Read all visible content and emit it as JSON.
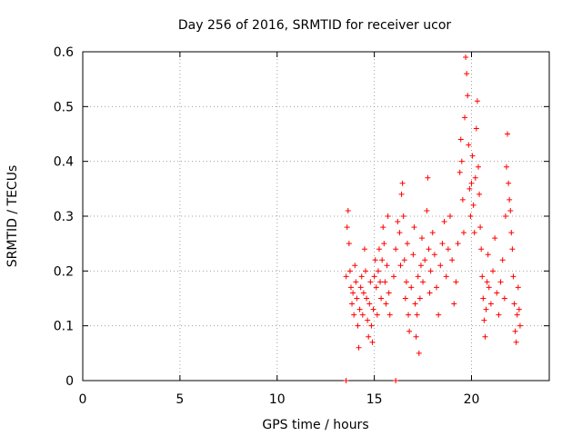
{
  "chart_data": {
    "type": "scatter",
    "title": "Day 256 of 2016, SRMTID for receiver ucor",
    "xlabel": "GPS time / hours",
    "ylabel": "SRMTID / TECUs",
    "xlim": [
      0,
      24
    ],
    "ylim": [
      0,
      0.6
    ],
    "xticks": [
      0,
      5,
      10,
      15,
      20
    ],
    "xtick_labels": [
      "0",
      "5",
      "10",
      "15",
      "20"
    ],
    "yticks": [
      0,
      0.1,
      0.2,
      0.3,
      0.4,
      0.5,
      0.6
    ],
    "ytick_labels": [
      "0",
      "0.1",
      "0.2",
      "0.3",
      "0.4",
      "0.5",
      "0.6"
    ],
    "grid": true,
    "marker": "+",
    "color": "#ff0000",
    "series": [
      {
        "name": "SRMTID",
        "points": [
          [
            13.55,
            0.19
          ],
          [
            13.6,
            0.28
          ],
          [
            13.65,
            0.31
          ],
          [
            13.7,
            0.25
          ],
          [
            13.75,
            0.2
          ],
          [
            13.8,
            0.17
          ],
          [
            13.85,
            0.14
          ],
          [
            13.9,
            0.16
          ],
          [
            13.95,
            0.12
          ],
          [
            14.0,
            0.21
          ],
          [
            14.05,
            0.18
          ],
          [
            14.1,
            0.15
          ],
          [
            14.15,
            0.1
          ],
          [
            14.2,
            0.06
          ],
          [
            14.25,
            0.13
          ],
          [
            14.3,
            0.17
          ],
          [
            14.35,
            0.19
          ],
          [
            14.4,
            0.12
          ],
          [
            14.45,
            0.16
          ],
          [
            14.5,
            0.24
          ],
          [
            14.55,
            0.2
          ],
          [
            14.6,
            0.15
          ],
          [
            14.65,
            0.11
          ],
          [
            14.7,
            0.08
          ],
          [
            14.75,
            0.14
          ],
          [
            14.8,
            0.18
          ],
          [
            14.85,
            0.1
          ],
          [
            14.9,
            0.07
          ],
          [
            14.95,
            0.13
          ],
          [
            15.0,
            0.19
          ],
          [
            15.05,
            0.22
          ],
          [
            15.1,
            0.17
          ],
          [
            15.15,
            0.12
          ],
          [
            15.2,
            0.2
          ],
          [
            15.25,
            0.24
          ],
          [
            15.3,
            0.18
          ],
          [
            15.35,
            0.15
          ],
          [
            15.4,
            0.22
          ],
          [
            15.45,
            0.28
          ],
          [
            15.5,
            0.25
          ],
          [
            15.55,
            0.18
          ],
          [
            15.6,
            0.14
          ],
          [
            15.65,
            0.21
          ],
          [
            15.7,
            0.3
          ],
          [
            15.75,
            0.16
          ],
          [
            15.8,
            0.12
          ],
          [
            16.0,
            0.19
          ],
          [
            16.1,
            0.24
          ],
          [
            16.2,
            0.29
          ],
          [
            16.3,
            0.27
          ],
          [
            16.35,
            0.21
          ],
          [
            16.4,
            0.34
          ],
          [
            16.45,
            0.36
          ],
          [
            16.5,
            0.3
          ],
          [
            16.55,
            0.22
          ],
          [
            16.6,
            0.15
          ],
          [
            16.65,
            0.18
          ],
          [
            16.7,
            0.25
          ],
          [
            16.75,
            0.12
          ],
          [
            16.8,
            0.09
          ],
          [
            16.9,
            0.17
          ],
          [
            17.0,
            0.23
          ],
          [
            17.05,
            0.28
          ],
          [
            17.1,
            0.14
          ],
          [
            17.15,
            0.08
          ],
          [
            17.2,
            0.12
          ],
          [
            17.25,
            0.19
          ],
          [
            17.3,
            0.05
          ],
          [
            17.35,
            0.15
          ],
          [
            17.4,
            0.21
          ],
          [
            17.45,
            0.26
          ],
          [
            17.5,
            0.18
          ],
          [
            17.6,
            0.22
          ],
          [
            17.7,
            0.31
          ],
          [
            17.75,
            0.37
          ],
          [
            17.8,
            0.24
          ],
          [
            17.85,
            0.16
          ],
          [
            17.9,
            0.2
          ],
          [
            18.0,
            0.27
          ],
          [
            18.1,
            0.23
          ],
          [
            18.2,
            0.17
          ],
          [
            18.3,
            0.12
          ],
          [
            18.4,
            0.21
          ],
          [
            18.5,
            0.25
          ],
          [
            18.6,
            0.29
          ],
          [
            18.7,
            0.19
          ],
          [
            18.8,
            0.24
          ],
          [
            18.9,
            0.3
          ],
          [
            19.0,
            0.22
          ],
          [
            19.1,
            0.14
          ],
          [
            19.2,
            0.18
          ],
          [
            19.3,
            0.25
          ],
          [
            19.4,
            0.38
          ],
          [
            19.45,
            0.44
          ],
          [
            19.5,
            0.4
          ],
          [
            19.55,
            0.33
          ],
          [
            19.6,
            0.27
          ],
          [
            19.65,
            0.48
          ],
          [
            19.7,
            0.59
          ],
          [
            19.75,
            0.56
          ],
          [
            19.8,
            0.52
          ],
          [
            19.85,
            0.43
          ],
          [
            19.9,
            0.35
          ],
          [
            19.95,
            0.3
          ],
          [
            20.0,
            0.36
          ],
          [
            20.05,
            0.41
          ],
          [
            20.1,
            0.32
          ],
          [
            20.15,
            0.27
          ],
          [
            20.2,
            0.37
          ],
          [
            20.25,
            0.46
          ],
          [
            20.3,
            0.51
          ],
          [
            20.35,
            0.39
          ],
          [
            20.4,
            0.34
          ],
          [
            20.45,
            0.28
          ],
          [
            20.5,
            0.24
          ],
          [
            20.55,
            0.19
          ],
          [
            20.6,
            0.15
          ],
          [
            20.65,
            0.11
          ],
          [
            20.7,
            0.08
          ],
          [
            20.75,
            0.13
          ],
          [
            20.8,
            0.18
          ],
          [
            20.85,
            0.23
          ],
          [
            20.9,
            0.17
          ],
          [
            21.0,
            0.14
          ],
          [
            21.1,
            0.2
          ],
          [
            21.2,
            0.26
          ],
          [
            21.3,
            0.16
          ],
          [
            21.4,
            0.12
          ],
          [
            21.5,
            0.18
          ],
          [
            21.6,
            0.22
          ],
          [
            21.7,
            0.15
          ],
          [
            21.75,
            0.3
          ],
          [
            21.8,
            0.39
          ],
          [
            21.85,
            0.45
          ],
          [
            21.9,
            0.36
          ],
          [
            21.95,
            0.33
          ],
          [
            22.0,
            0.31
          ],
          [
            22.05,
            0.27
          ],
          [
            22.1,
            0.24
          ],
          [
            22.15,
            0.19
          ],
          [
            22.2,
            0.14
          ],
          [
            22.25,
            0.09
          ],
          [
            22.3,
            0.07
          ],
          [
            22.35,
            0.12
          ],
          [
            22.4,
            0.17
          ],
          [
            22.45,
            0.13
          ],
          [
            22.5,
            0.1
          ],
          [
            13.55,
            0.0
          ],
          [
            16.1,
            0.0
          ]
        ]
      }
    ]
  }
}
